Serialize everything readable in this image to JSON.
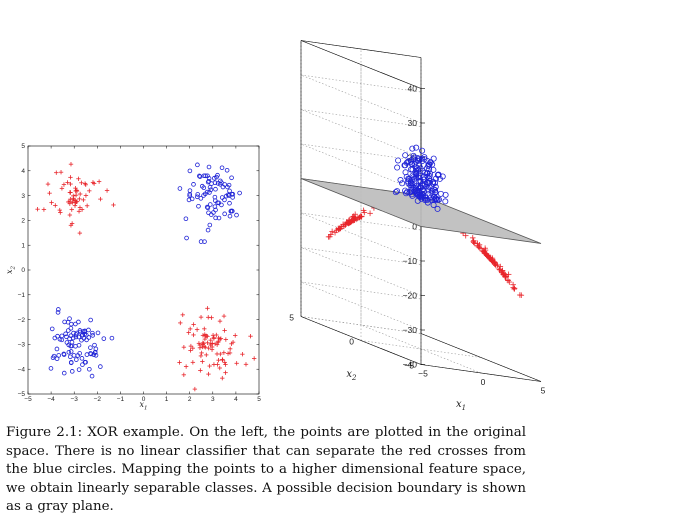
{
  "caption": {
    "figure_label": "Figure 2.1:",
    "text": "XOR example. On the left, the points are plotted in the original space. There is no linear classifier that can separate the red crosses from the blue circles. Mapping the points to a higher dimensional feature space, we obtain linearly separable classes. A possible decision boundary is shown as a gray plane."
  },
  "colors": {
    "cross": "#e8252b",
    "circle": "#1f23d6",
    "plane": "#bdbdbd"
  },
  "chart_data": [
    {
      "type": "scatter",
      "xlabel": "x1",
      "ylabel": "x2",
      "xlim": [
        -5,
        5
      ],
      "ylim": [
        -5,
        5
      ],
      "xticks": [
        -5,
        -4,
        -3,
        -2,
        -1,
        0,
        1,
        2,
        3,
        4,
        5
      ],
      "yticks": [
        -5,
        -4,
        -3,
        -2,
        -1,
        0,
        1,
        2,
        3,
        4,
        5
      ],
      "grid": false,
      "series": [
        {
          "marker": "cross",
          "clusters": [
            {
              "center": [
                -3,
                3
              ],
              "count": 60,
              "spread": 0.6
            },
            {
              "center": [
                3,
                -3
              ],
              "count": 90,
              "spread": 0.65
            }
          ]
        },
        {
          "marker": "circle",
          "clusters": [
            {
              "center": [
                3,
                3
              ],
              "count": 85,
              "spread": 0.6
            },
            {
              "center": [
                -3,
                -3
              ],
              "count": 90,
              "spread": 0.6
            }
          ]
        }
      ]
    },
    {
      "type": "scatter3d",
      "xlabel": "x1",
      "ylabel": "x2",
      "xlim": [
        -5,
        5
      ],
      "ylim": [
        -5,
        5
      ],
      "zlim": [
        -40,
        40
      ],
      "xticks": [
        -5,
        0,
        5
      ],
      "yticks": [
        -5,
        0,
        5
      ],
      "zticks": [
        40,
        30,
        20,
        10,
        0,
        -10,
        -20,
        -30,
        -40
      ],
      "grid": true,
      "decision_plane_z": 0,
      "feature_z": "x1 * x2"
    }
  ]
}
